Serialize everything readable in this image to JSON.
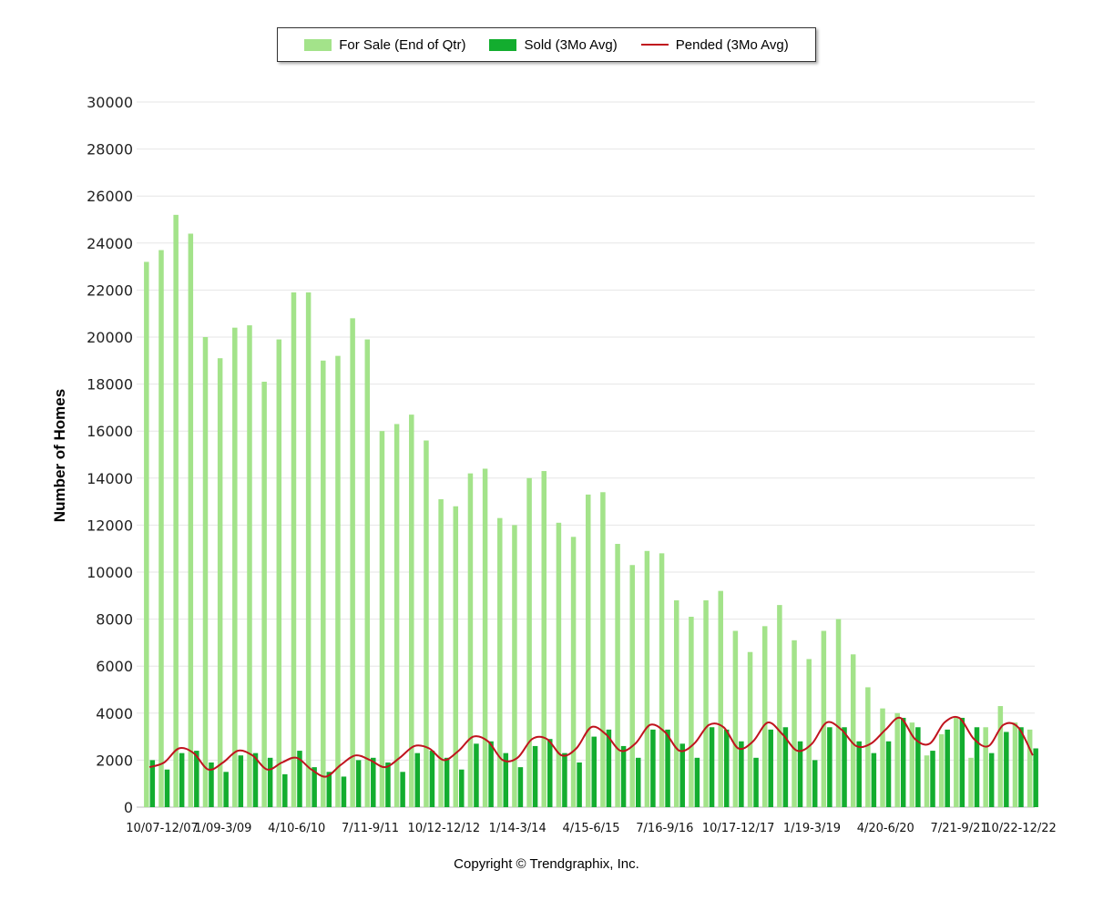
{
  "footer": {
    "copyright": "Copyright © Trendgraphix, Inc."
  },
  "chart_data": {
    "type": "bar",
    "title": "",
    "ylabel": "Number of Homes",
    "xlabel": "",
    "ylim": [
      0,
      30000
    ],
    "yticks": [
      0,
      2000,
      4000,
      6000,
      8000,
      10000,
      12000,
      14000,
      16000,
      18000,
      20000,
      22000,
      24000,
      26000,
      28000,
      30000
    ],
    "grid": true,
    "legend_position": "top-center",
    "colors": {
      "for_sale": "#a3e38a",
      "sold": "#13ad2f",
      "pended": "#c0141e",
      "grid": "#e6e6e6"
    },
    "legend": [
      {
        "name": "For Sale (End of Qtr)",
        "kind": "bar",
        "color": "#a3e38a"
      },
      {
        "name": "Sold (3Mo Avg)",
        "kind": "bar",
        "color": "#13ad2f"
      },
      {
        "name": "Pended (3Mo Avg)",
        "kind": "line",
        "color": "#c0141e"
      }
    ],
    "x_tick_labels": [
      {
        "index": 0,
        "label": "10/07-12/07"
      },
      {
        "index": 5,
        "label": "1/09-3/09"
      },
      {
        "index": 10,
        "label": "4/10-6/10"
      },
      {
        "index": 15,
        "label": "7/11-9/11"
      },
      {
        "index": 20,
        "label": "10/12-12/12"
      },
      {
        "index": 25,
        "label": "1/14-3/14"
      },
      {
        "index": 30,
        "label": "4/15-6/15"
      },
      {
        "index": 35,
        "label": "7/16-9/16"
      },
      {
        "index": 40,
        "label": "10/17-12/17"
      },
      {
        "index": 45,
        "label": "1/19-3/19"
      },
      {
        "index": 50,
        "label": "4/20-6/20"
      },
      {
        "index": 55,
        "label": "7/21-9/21"
      },
      {
        "index": 60,
        "label": "10/22-12/22"
      }
    ],
    "n_periods": 61,
    "series": [
      {
        "name": "For Sale (End of Qtr)",
        "type": "bar",
        "values": [
          23200,
          23700,
          25200,
          24400,
          20000,
          19100,
          20400,
          20500,
          18100,
          19900,
          21900,
          21900,
          19000,
          19200,
          20800,
          19900,
          16000,
          16300,
          16700,
          15600,
          13100,
          12800,
          14200,
          14400,
          12300,
          12000,
          14000,
          14300,
          12100,
          11500,
          13300,
          13400,
          11200,
          10300,
          10900,
          10800,
          8800,
          8100,
          8800,
          9200,
          7500,
          6600,
          7700,
          8600,
          7100,
          6300,
          7500,
          8000,
          6500,
          5100,
          4200,
          4000,
          3600,
          2200,
          3100,
          3800,
          2100,
          3400,
          4300,
          3600,
          3300
        ]
      },
      {
        "name": "Sold (3Mo Avg)",
        "type": "bar",
        "values": [
          2000,
          1600,
          2300,
          2400,
          1900,
          1500,
          2200,
          2300,
          2100,
          1400,
          2400,
          1700,
          1500,
          1300,
          2000,
          2100,
          1900,
          1500,
          2300,
          2400,
          2100,
          1600,
          2700,
          2800,
          2300,
          1700,
          2600,
          2900,
          2300,
          1900,
          3000,
          3300,
          2600,
          2100,
          3300,
          3300,
          2700,
          2100,
          3400,
          3300,
          2800,
          2100,
          3300,
          3400,
          2800,
          2000,
          3400,
          3400,
          2800,
          2300,
          2800,
          3800,
          3400,
          2400,
          3300,
          3800,
          3400,
          2300,
          3200,
          3400,
          2500
        ]
      },
      {
        "name": "Pended (3Mo Avg)",
        "type": "line",
        "values": [
          1700,
          1900,
          2500,
          2300,
          1600,
          1900,
          2400,
          2200,
          1600,
          1900,
          2100,
          1600,
          1300,
          1800,
          2200,
          2000,
          1700,
          2100,
          2600,
          2500,
          2000,
          2400,
          3000,
          2800,
          2000,
          2100,
          2900,
          2900,
          2200,
          2500,
          3400,
          3100,
          2400,
          2700,
          3500,
          3200,
          2400,
          2700,
          3500,
          3400,
          2500,
          2800,
          3600,
          3100,
          2400,
          2700,
          3600,
          3300,
          2600,
          2700,
          3300,
          3800,
          2900,
          2700,
          3600,
          3800,
          2900,
          2600,
          3500,
          3400,
          2200
        ]
      }
    ]
  }
}
